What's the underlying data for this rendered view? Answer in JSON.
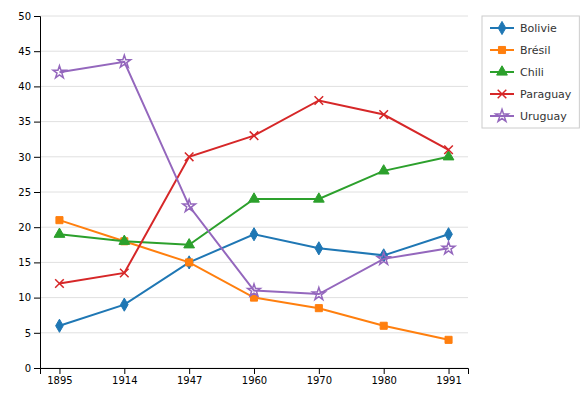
{
  "chart_data": {
    "type": "line",
    "categories": [
      "1895",
      "1914",
      "1947",
      "1960",
      "1970",
      "1980",
      "1991"
    ],
    "series": [
      {
        "name": "Bolivie",
        "marker": "diamond",
        "values": [
          6,
          9,
          15,
          19,
          17,
          16,
          19
        ]
      },
      {
        "name": "Brésil",
        "marker": "square",
        "values": [
          21,
          18,
          15,
          10,
          8.5,
          6,
          4
        ]
      },
      {
        "name": "Chili",
        "marker": "triangle",
        "values": [
          19,
          18,
          17.5,
          24,
          24,
          28,
          30
        ]
      },
      {
        "name": "Paraguay",
        "marker": "x",
        "values": [
          12,
          13.5,
          30,
          33,
          38,
          36,
          31
        ]
      },
      {
        "name": "Uruguay",
        "marker": "star",
        "values": [
          42,
          43.5,
          23,
          11,
          10.5,
          15.5,
          17
        ]
      }
    ],
    "ylim": [
      0,
      50
    ],
    "yticks": [
      0,
      5,
      10,
      15,
      20,
      25,
      30,
      35,
      40,
      45,
      50
    ],
    "grid": true,
    "legend": "right"
  }
}
